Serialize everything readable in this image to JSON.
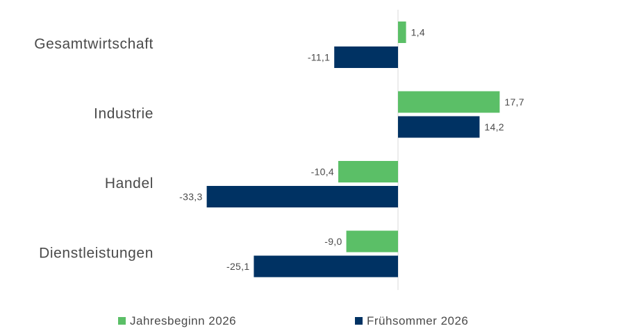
{
  "chart_data": {
    "type": "bar",
    "orientation": "horizontal",
    "categories": [
      "Gesamtwirtschaft",
      "Industrie",
      "Handel",
      "Dienstleistungen"
    ],
    "series": [
      {
        "name": "Jahresbeginn 2026",
        "values": [
          1.4,
          17.7,
          -10.4,
          -9.0
        ],
        "labels": [
          "1,4",
          "17,7",
          "-10,4",
          "-9,0"
        ],
        "color": "#5bbf67"
      },
      {
        "name": "Frühsommer 2026",
        "values": [
          -11.1,
          14.2,
          -33.3,
          -25.1
        ],
        "labels": [
          "-11,1",
          "14,2",
          "-33,3",
          "-25,1"
        ],
        "color": "#003263"
      }
    ],
    "xlim": [
      -40,
      40
    ],
    "legend_position": "bottom",
    "grid": false,
    "zero_line_color": "#d9d9d9",
    "title": "",
    "xlabel": "",
    "ylabel": ""
  }
}
